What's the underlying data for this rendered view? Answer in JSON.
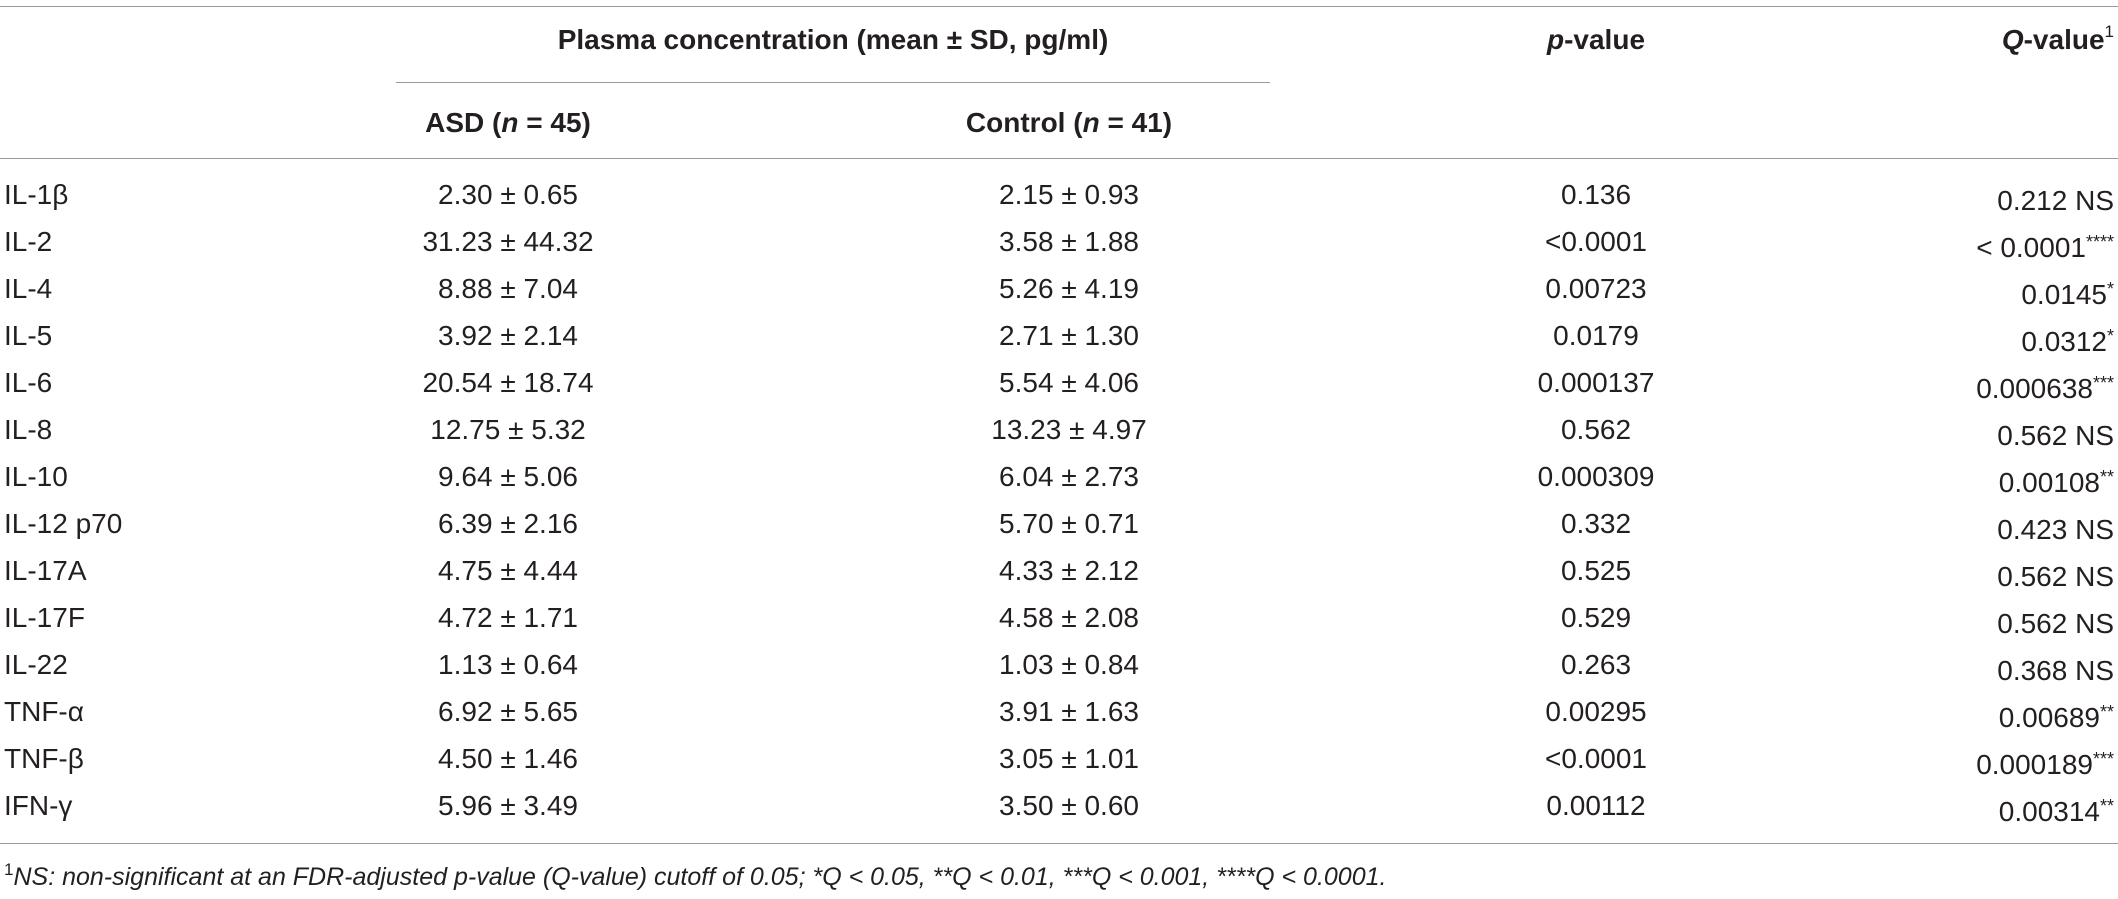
{
  "header": {
    "group_title": "Plasma concentration (mean ± SD, pg/ml)",
    "col_asd_prefix": "ASD (",
    "col_asd_n": "n",
    "col_asd_suffix": " = 45)",
    "col_control_prefix": "Control (",
    "col_control_n": "n",
    "col_control_suffix": " = 41)",
    "col_p_italic": "p",
    "col_p_rest": "-value",
    "col_q_italic": "Q",
    "col_q_rest": "-value",
    "col_q_sup": "1"
  },
  "rows": [
    {
      "cytokine": "IL-1β",
      "asd": "2.30 ± 0.65",
      "control": "2.15 ± 0.93",
      "p": "0.136",
      "q": "0.212 NS",
      "q_stars": ""
    },
    {
      "cytokine": "IL-2",
      "asd": "31.23 ± 44.32",
      "control": "3.58 ± 1.88",
      "p": "<0.0001",
      "q": "< 0.0001",
      "q_stars": "****"
    },
    {
      "cytokine": "IL-4",
      "asd": "8.88 ± 7.04",
      "control": "5.26 ± 4.19",
      "p": "0.00723",
      "q": "0.0145",
      "q_stars": "*"
    },
    {
      "cytokine": "IL-5",
      "asd": "3.92 ± 2.14",
      "control": "2.71 ± 1.30",
      "p": "0.0179",
      "q": "0.0312",
      "q_stars": "*"
    },
    {
      "cytokine": "IL-6",
      "asd": "20.54 ± 18.74",
      "control": "5.54 ± 4.06",
      "p": "0.000137",
      "q": "0.000638",
      "q_stars": "***"
    },
    {
      "cytokine": "IL-8",
      "asd": "12.75 ± 5.32",
      "control": "13.23 ± 4.97",
      "p": "0.562",
      "q": "0.562 NS",
      "q_stars": ""
    },
    {
      "cytokine": "IL-10",
      "asd": "9.64 ± 5.06",
      "control": "6.04 ± 2.73",
      "p": "0.000309",
      "q": "0.00108",
      "q_stars": "**"
    },
    {
      "cytokine": "IL-12 p70",
      "asd": "6.39 ± 2.16",
      "control": "5.70 ± 0.71",
      "p": "0.332",
      "q": "0.423 NS",
      "q_stars": ""
    },
    {
      "cytokine": "IL-17A",
      "asd": "4.75 ± 4.44",
      "control": "4.33 ± 2.12",
      "p": "0.525",
      "q": "0.562 NS",
      "q_stars": ""
    },
    {
      "cytokine": "IL-17F",
      "asd": "4.72 ± 1.71",
      "control": "4.58 ± 2.08",
      "p": "0.529",
      "q": "0.562 NS",
      "q_stars": ""
    },
    {
      "cytokine": "IL-22",
      "asd": "1.13 ± 0.64",
      "control": "1.03 ± 0.84",
      "p": "0.263",
      "q": "0.368 NS",
      "q_stars": ""
    },
    {
      "cytokine": "TNF-α",
      "asd": "6.92 ± 5.65",
      "control": "3.91 ± 1.63",
      "p": "0.00295",
      "q": "0.00689",
      "q_stars": "**"
    },
    {
      "cytokine": "TNF-β",
      "asd": "4.50 ± 1.46",
      "control": "3.05 ± 1.01",
      "p": "<0.0001",
      "q": "0.000189",
      "q_stars": "***"
    },
    {
      "cytokine": "IFN-γ",
      "asd": "5.96 ± 3.49",
      "control": "3.50 ± 0.60",
      "p": "0.00112",
      "q": "0.00314",
      "q_stars": "**"
    }
  ],
  "footnote": {
    "marker": "1",
    "text": "NS: non-significant at an FDR-adjusted p-value (Q-value) cutoff of 0.05; *Q < 0.05, **Q < 0.01, ***Q < 0.001, ****Q < 0.0001."
  }
}
